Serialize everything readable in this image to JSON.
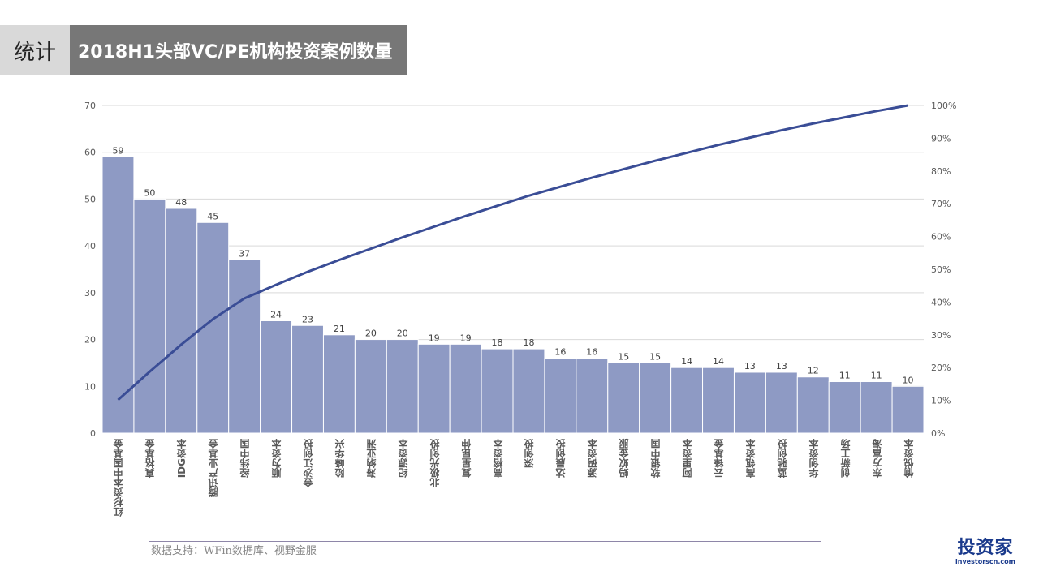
{
  "header": {
    "section": "统计",
    "title": "2018H1头部VC/PE机构投资案例数量"
  },
  "chart_data": {
    "type": "bar",
    "title": "2018H1头部VC/PE机构投资案例数量",
    "categories": [
      "红杉资本中国基金",
      "真格基金",
      "IDG资本",
      "腾讯产业基金",
      "经纬中国",
      "顺为资本",
      "金沙江创投",
      "险峰华兴",
      "海纳亚洲",
      "纪源资本",
      "北极光创投",
      "复星昆仲",
      "高榕资本",
      "深创投",
      "达晨创投",
      "源码资本",
      "蚂蚁金服",
      "软银中国",
      "阿里资本",
      "云锋基金",
      "高瓴资本",
      "蓝驰创投",
      "华创资本",
      "创新工场",
      "东方富海",
      "愉悦资本"
    ],
    "values": [
      59,
      50,
      48,
      45,
      37,
      24,
      23,
      21,
      20,
      20,
      19,
      19,
      18,
      18,
      16,
      16,
      15,
      15,
      14,
      14,
      13,
      13,
      12,
      11,
      11,
      10
    ],
    "cumulative_line": "cumulative percentage (Pareto)",
    "ylim": [
      0,
      70
    ],
    "yticks": [
      "0",
      "10",
      "20",
      "30",
      "40",
      "50",
      "60",
      "70"
    ],
    "y2lim": [
      0,
      100
    ],
    "y2ticks": [
      "0%",
      "10%",
      "20%",
      "30%",
      "40%",
      "50%",
      "60%",
      "70%",
      "80%",
      "90%",
      "100%"
    ],
    "grid": true,
    "bar_color": "#8e9ac4",
    "line_color": "#3a4d96"
  },
  "footer": {
    "source": "数据支持：WFin数据库、视野金服",
    "logo_text": "投资家",
    "logo_url": "investorscn.com"
  }
}
